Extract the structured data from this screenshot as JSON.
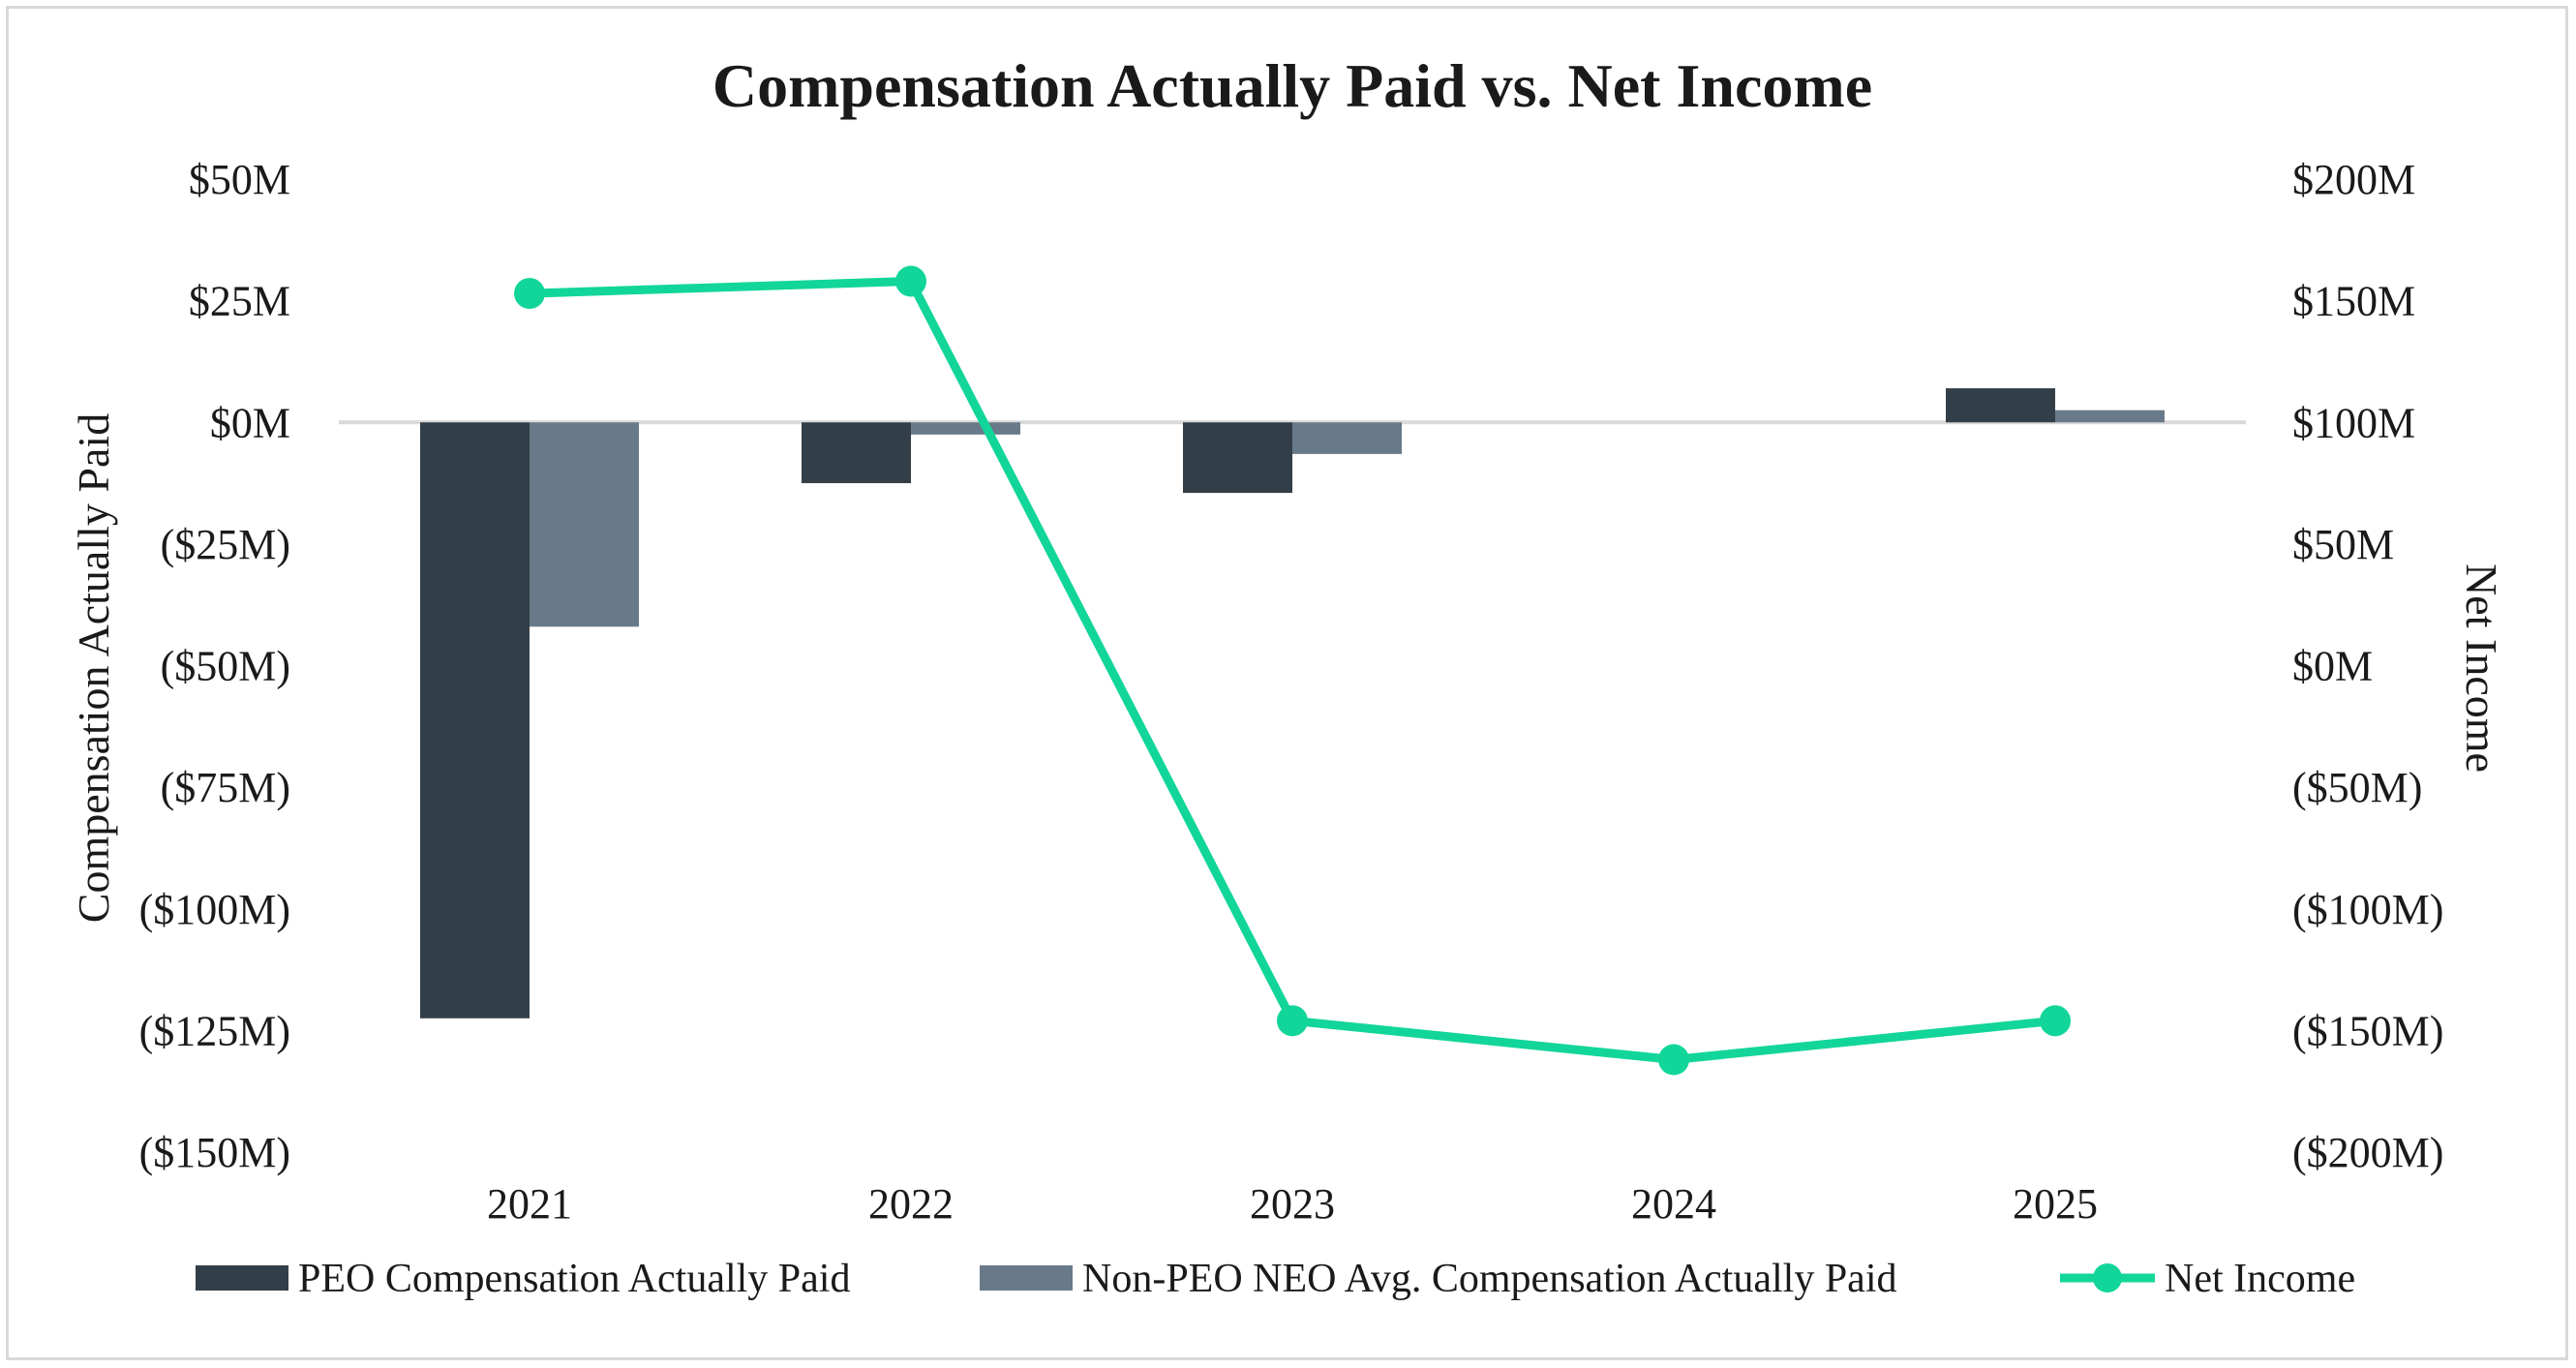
{
  "chart_data": {
    "type": "bar",
    "title": "Compensation Actually Paid vs. Net Income",
    "categories": [
      "2021",
      "2022",
      "2023",
      "2024",
      "2025"
    ],
    "ylabel": "Compensation Actually Paid",
    "y2label": "Net Income",
    "ylim": [
      -150,
      50
    ],
    "y2lim": [
      -200,
      200
    ],
    "y_ticks": [
      "$50M",
      "$25M",
      "$0M",
      "($25M)",
      "($50M)",
      "($75M)",
      "($100M)",
      "($125M)",
      "($150M)"
    ],
    "y2_ticks": [
      "$200M",
      "$150M",
      "$100M",
      "$50M",
      "$0M",
      "($50M)",
      "($100M)",
      "($150M)",
      "($200M)"
    ],
    "grid": false,
    "legend_position": "bottom",
    "series": [
      {
        "name": "PEO Compensation Actually Paid",
        "type": "bar",
        "axis": "left",
        "color": "#333f48",
        "values": [
          -122.5,
          -12.5,
          -14.5,
          0,
          7
        ]
      },
      {
        "name": "Non-PEO NEO Avg. Compensation Actually Paid",
        "type": "bar",
        "axis": "left",
        "color": "#687a89",
        "values": [
          -42,
          -2.5,
          -6.5,
          0,
          2.5
        ]
      },
      {
        "name": "Net Income",
        "type": "line",
        "axis": "right",
        "color": "#12d699",
        "values": [
          153,
          158,
          -146,
          -162,
          -146
        ]
      }
    ]
  }
}
